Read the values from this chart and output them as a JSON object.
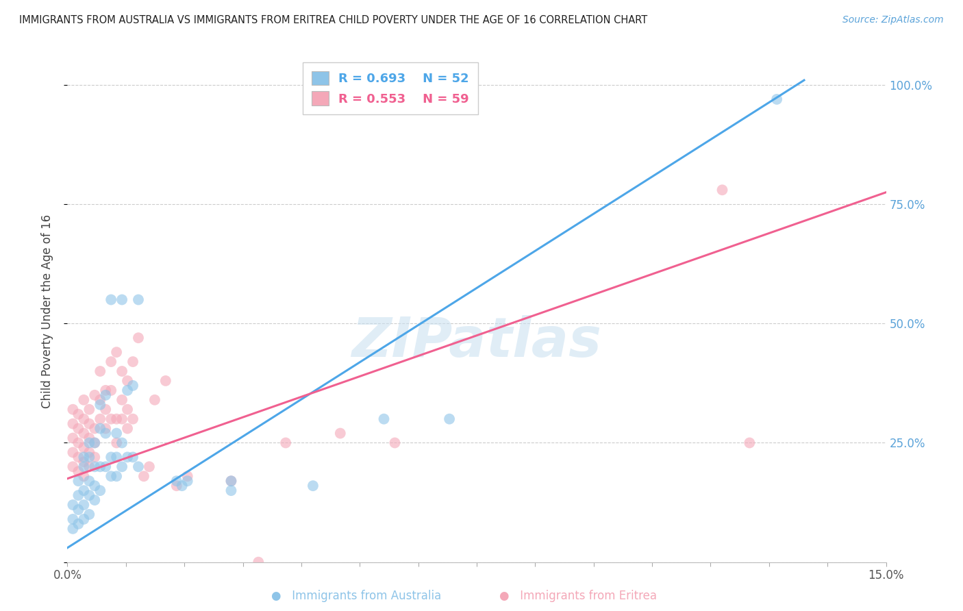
{
  "title": "IMMIGRANTS FROM AUSTRALIA VS IMMIGRANTS FROM ERITREA CHILD POVERTY UNDER THE AGE OF 16 CORRELATION CHART",
  "source": "Source: ZipAtlas.com",
  "ylabel": "Child Poverty Under the Age of 16",
  "watermark": "ZIPatlas",
  "legend_australia_R": "0.693",
  "legend_australia_N": "52",
  "legend_eritrea_R": "0.553",
  "legend_eritrea_N": "59",
  "color_australia": "#8ec4e8",
  "color_eritrea": "#f4a8b8",
  "color_australia_line": "#4da6e8",
  "color_eritrea_line": "#f06090",
  "xlim": [
    0.0,
    0.15
  ],
  "ylim": [
    0.0,
    1.05
  ],
  "y_ticks": [
    0.0,
    0.25,
    0.5,
    0.75,
    1.0
  ],
  "y_tick_labels": [
    "",
    "25.0%",
    "50.0%",
    "75.0%",
    "100.0%"
  ],
  "australia_line_x0": 0.0,
  "australia_line_y0": 0.03,
  "australia_line_x1": 0.135,
  "australia_line_y1": 1.01,
  "eritrea_line_x0": 0.0,
  "eritrea_line_y0": 0.175,
  "eritrea_line_x1": 0.15,
  "eritrea_line_y1": 0.775,
  "australia_x": [
    0.001,
    0.001,
    0.001,
    0.002,
    0.002,
    0.002,
    0.002,
    0.003,
    0.003,
    0.003,
    0.003,
    0.003,
    0.004,
    0.004,
    0.004,
    0.004,
    0.004,
    0.005,
    0.005,
    0.005,
    0.005,
    0.006,
    0.006,
    0.006,
    0.006,
    0.007,
    0.007,
    0.007,
    0.008,
    0.008,
    0.008,
    0.009,
    0.009,
    0.009,
    0.01,
    0.01,
    0.01,
    0.011,
    0.011,
    0.012,
    0.012,
    0.013,
    0.013,
    0.02,
    0.021,
    0.022,
    0.03,
    0.03,
    0.045,
    0.058,
    0.07,
    0.13
  ],
  "australia_y": [
    0.07,
    0.09,
    0.12,
    0.08,
    0.11,
    0.14,
    0.17,
    0.09,
    0.12,
    0.15,
    0.2,
    0.22,
    0.1,
    0.14,
    0.17,
    0.22,
    0.25,
    0.13,
    0.16,
    0.2,
    0.25,
    0.15,
    0.2,
    0.28,
    0.33,
    0.2,
    0.27,
    0.35,
    0.18,
    0.22,
    0.55,
    0.18,
    0.22,
    0.27,
    0.2,
    0.25,
    0.55,
    0.22,
    0.36,
    0.22,
    0.37,
    0.2,
    0.55,
    0.17,
    0.16,
    0.17,
    0.15,
    0.17,
    0.16,
    0.3,
    0.3,
    0.97
  ],
  "eritrea_x": [
    0.001,
    0.001,
    0.001,
    0.001,
    0.001,
    0.002,
    0.002,
    0.002,
    0.002,
    0.002,
    0.003,
    0.003,
    0.003,
    0.003,
    0.003,
    0.003,
    0.004,
    0.004,
    0.004,
    0.004,
    0.004,
    0.005,
    0.005,
    0.005,
    0.005,
    0.006,
    0.006,
    0.006,
    0.007,
    0.007,
    0.007,
    0.008,
    0.008,
    0.008,
    0.009,
    0.009,
    0.009,
    0.01,
    0.01,
    0.01,
    0.011,
    0.011,
    0.011,
    0.012,
    0.012,
    0.013,
    0.014,
    0.015,
    0.016,
    0.018,
    0.02,
    0.022,
    0.03,
    0.035,
    0.04,
    0.05,
    0.06,
    0.12,
    0.125
  ],
  "eritrea_y": [
    0.2,
    0.23,
    0.26,
    0.29,
    0.32,
    0.19,
    0.22,
    0.25,
    0.28,
    0.31,
    0.18,
    0.21,
    0.24,
    0.27,
    0.3,
    0.34,
    0.2,
    0.23,
    0.26,
    0.29,
    0.32,
    0.22,
    0.25,
    0.28,
    0.35,
    0.3,
    0.34,
    0.4,
    0.28,
    0.32,
    0.36,
    0.3,
    0.36,
    0.42,
    0.25,
    0.3,
    0.44,
    0.3,
    0.34,
    0.4,
    0.28,
    0.32,
    0.38,
    0.3,
    0.42,
    0.47,
    0.18,
    0.2,
    0.34,
    0.38,
    0.16,
    0.18,
    0.17,
    0.0,
    0.25,
    0.27,
    0.25,
    0.78,
    0.25
  ]
}
